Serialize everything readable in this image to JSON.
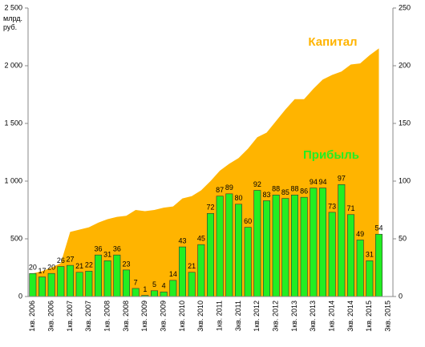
{
  "chart_data": {
    "type": "combo",
    "y_unit": "млрд. руб.",
    "categories": [
      "1кв. 2006",
      null,
      "3кв. 2006",
      null,
      "1кв. 2007",
      null,
      "3кв. 2007",
      null,
      "1кв. 2008",
      null,
      "3кв. 2008",
      null,
      "1кв. 2009",
      null,
      "3кв. 2009",
      null,
      "1кв. 2010",
      null,
      "3кв. 2010",
      null,
      "1кв. 2011",
      null,
      "3кв. 2011",
      null,
      "1кв. 2012",
      null,
      "3кв. 2012",
      null,
      "1кв. 2013",
      null,
      "3кв. 2013",
      null,
      "1кв. 2014",
      null,
      "3кв. 2014",
      null,
      "1кв. 2015",
      null,
      "3кв. 2015"
    ],
    "series": [
      {
        "name": "Капитал",
        "type": "area",
        "axis": "y",
        "color": "#ffb400",
        "values": [
          200,
          220,
          250,
          290,
          560,
          580,
          600,
          640,
          670,
          690,
          700,
          750,
          740,
          750,
          770,
          780,
          850,
          870,
          920,
          1000,
          1090,
          1150,
          1200,
          1280,
          1380,
          1420,
          1520,
          1620,
          1710,
          1710,
          1800,
          1880,
          1920,
          1950,
          2010,
          2020,
          2090,
          2150,
          null
        ]
      },
      {
        "name": "Прибыль",
        "type": "bar",
        "axis": "y2",
        "color": "#22ee22",
        "values": [
          20,
          17,
          20,
          26,
          27,
          21,
          22,
          36,
          31,
          36,
          23,
          7,
          1,
          5,
          4,
          14,
          43,
          21,
          45,
          72,
          87,
          89,
          80,
          60,
          92,
          83,
          88,
          85,
          88,
          86,
          94,
          94,
          73,
          97,
          71,
          49,
          31,
          54,
          null
        ]
      }
    ],
    "ylim": [
      0,
      2500
    ],
    "yticks": [
      0,
      500,
      {
        "value": 1000,
        "label": "1 000"
      },
      {
        "value": 1500,
        "label": "1 500"
      },
      {
        "value": 2000,
        "label": "2 000"
      },
      {
        "value": 2500,
        "label": "2 500"
      }
    ],
    "y2lim": [
      0,
      250
    ],
    "y2ticks": [
      0,
      50,
      100,
      150,
      200,
      250
    ]
  }
}
